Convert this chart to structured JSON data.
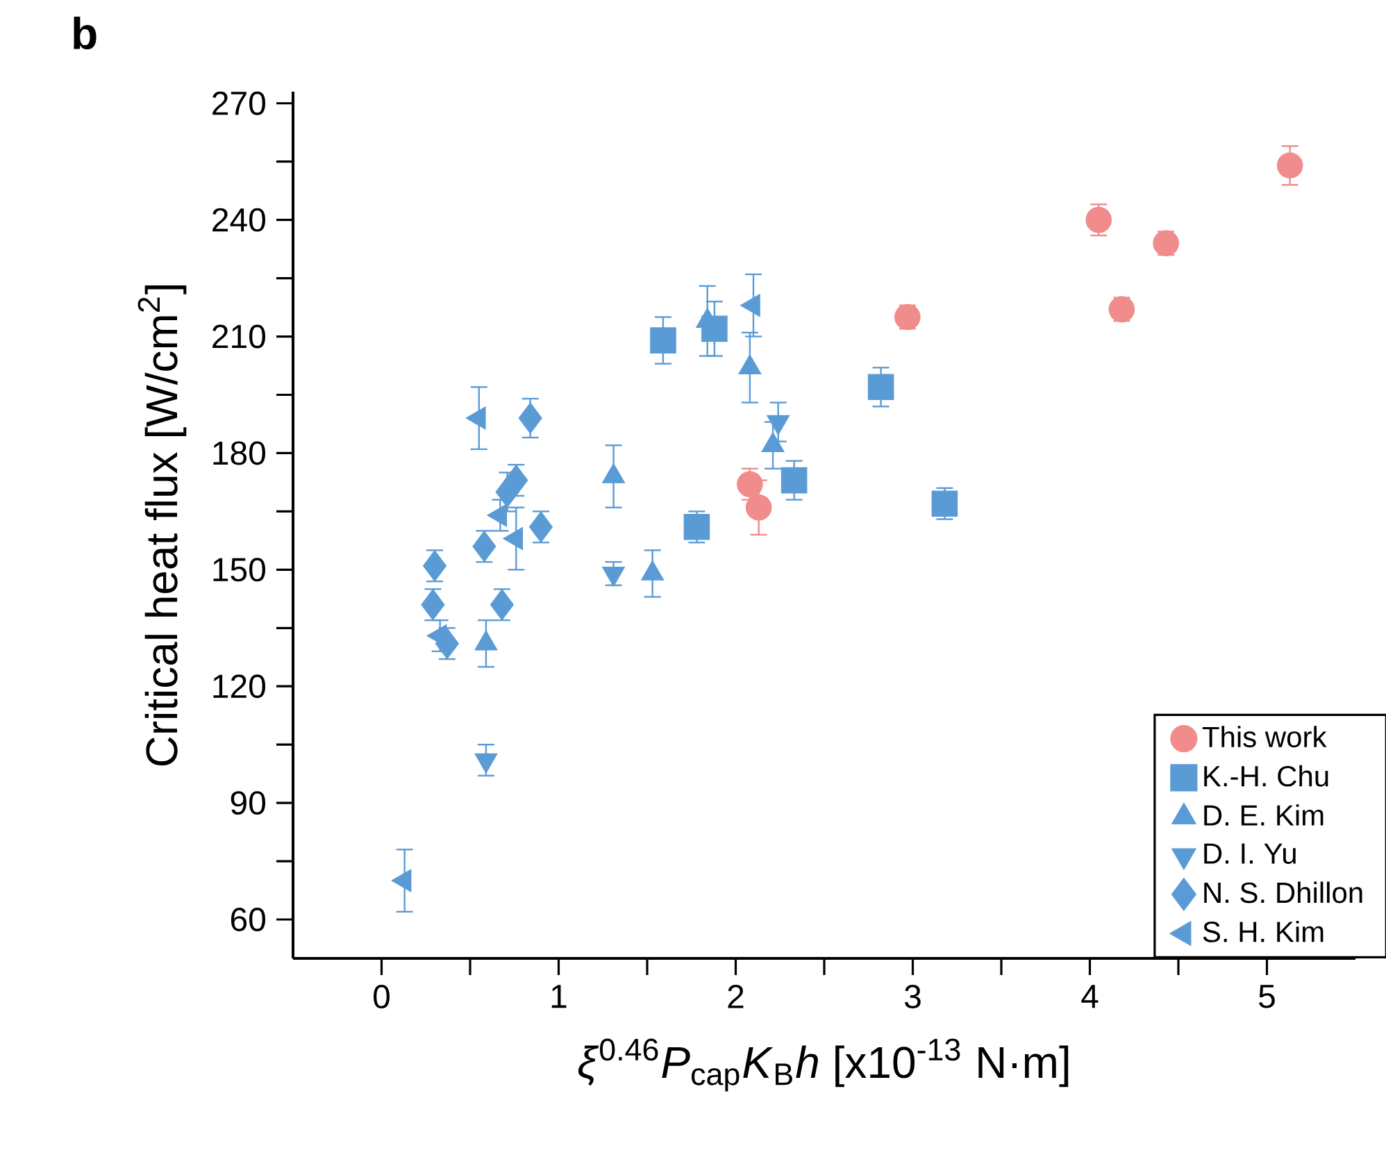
{
  "chart_data": {
    "type": "scatter",
    "title": "b",
    "xlabel": "*ξ*$^{0.46}$*P*$_{cap}$*K*$_{B}$*h*   [x10$^{-13}$ N·m]",
    "ylabel": "Critical heat flux [W/cm$^{2}$]",
    "xlim": [
      -0.5,
      5.5
    ],
    "ylim": [
      50,
      273
    ],
    "xticks": [
      0,
      {
        "value": 0.5,
        "label": null
      },
      1,
      {
        "value": 1.5,
        "label": null
      },
      2,
      {
        "value": 2.5,
        "label": null
      },
      3,
      {
        "value": 3.5,
        "label": null
      },
      4,
      {
        "value": 4.5,
        "label": null
      },
      5
    ],
    "yticks": [
      60,
      {
        "value": 75,
        "label": null
      },
      90,
      {
        "value": 105,
        "label": null
      },
      120,
      {
        "value": 135,
        "label": null
      },
      150,
      {
        "value": 165,
        "label": null
      },
      180,
      {
        "value": 195,
        "label": null
      },
      210,
      {
        "value": 225,
        "label": null
      },
      240,
      {
        "value": 255,
        "label": null
      },
      270
    ],
    "grid": false,
    "legend": "bottom right",
    "series": [
      {
        "name": "This work",
        "color": "#f08c8c",
        "marker": "circle",
        "x": [
          2.08,
          2.13,
          2.97,
          4.05,
          4.18,
          4.43,
          5.13
        ],
        "values": [
          172,
          166,
          215,
          240,
          217,
          234,
          254
        ],
        "errors": [
          4,
          7,
          3,
          4,
          3,
          3,
          5
        ]
      },
      {
        "name": "K.-H. Chu",
        "color": "#5b9bd5",
        "marker": "square",
        "x": [
          1.59,
          1.88,
          1.78,
          2.33,
          2.82,
          3.18
        ],
        "values": [
          209,
          212,
          161,
          173,
          197,
          167
        ],
        "errors": [
          6,
          7,
          4,
          5,
          5,
          4
        ]
      },
      {
        "name": "D. E. Kim",
        "color": "#5b9bd5",
        "marker": "triangle",
        "x": [
          0.59,
          1.31,
          1.53,
          1.84,
          2.08,
          2.21
        ],
        "values": [
          131,
          174,
          149,
          214,
          202,
          182
        ],
        "errors": [
          6,
          8,
          6,
          9,
          9,
          6
        ]
      },
      {
        "name": "D. I. Yu",
        "color": "#5b9bd5",
        "marker": "triangle-down",
        "x": [
          0.59,
          1.31,
          2.24
        ],
        "values": [
          101,
          149,
          188
        ],
        "errors": [
          4,
          3,
          5
        ]
      },
      {
        "name": "N. S. Dhillon",
        "color": "#5b9bd5",
        "marker": "diamond",
        "x": [
          0.3,
          0.29,
          0.37,
          0.58,
          0.68,
          0.71,
          0.76,
          0.9,
          0.84
        ],
        "values": [
          151,
          141,
          131,
          156,
          141,
          170,
          173,
          161,
          189
        ],
        "errors": [
          4,
          4,
          4,
          4,
          4,
          5,
          4,
          4,
          5
        ]
      },
      {
        "name": "S. H. Kim",
        "color": "#5b9bd5",
        "marker": "triangle-left",
        "x": [
          0.13,
          0.33,
          0.55,
          0.67,
          0.76,
          2.1
        ],
        "values": [
          70,
          133,
          189,
          164,
          158,
          218
        ],
        "errors": [
          8,
          4,
          8,
          4,
          8,
          8
        ]
      }
    ]
  }
}
